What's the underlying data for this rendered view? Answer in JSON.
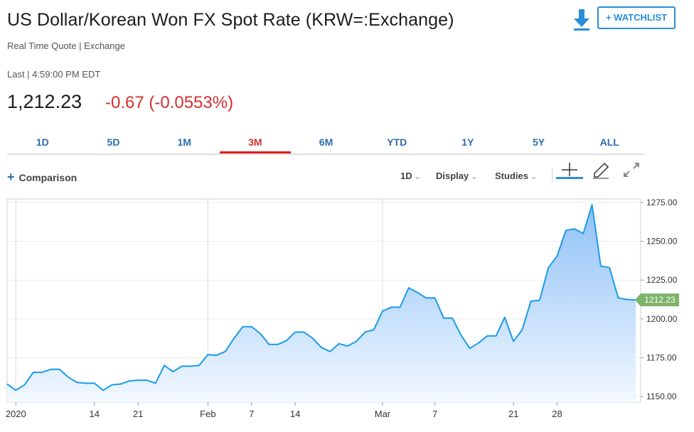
{
  "header": {
    "title": "US Dollar/Korean Won FX Spot Rate (KRW=:Exchange)",
    "subtitle": "Real Time Quote | Exchange",
    "last_time": "Last | 4:59:00 PM EDT",
    "price": "1,212.23",
    "change": "-0.67 (-0.0553%)",
    "watchlist_label": "+ WATCHLIST",
    "download_icon": "download-icon",
    "change_color": "#d32f2f"
  },
  "tabs": [
    {
      "label": "1D",
      "active": false
    },
    {
      "label": "5D",
      "active": false
    },
    {
      "label": "1M",
      "active": false
    },
    {
      "label": "3M",
      "active": true
    },
    {
      "label": "6M",
      "active": false
    },
    {
      "label": "YTD",
      "active": false
    },
    {
      "label": "1Y",
      "active": false
    },
    {
      "label": "5Y",
      "active": false
    },
    {
      "label": "ALL",
      "active": false
    }
  ],
  "toolbar": {
    "comparison_label": "Comparison",
    "interval_label": "1D",
    "display_label": "Display",
    "studies_label": "Studies",
    "crosshair_icon": "crosshair-icon",
    "draw_icon": "pencil-icon",
    "expand_icon": "expand-icon"
  },
  "chart_data": {
    "type": "area",
    "ylim": [
      1150,
      1275
    ],
    "y_ticks": [
      1150,
      1175,
      1200,
      1225,
      1250,
      1275
    ],
    "y_tick_labels": [
      "1150.00",
      "1175.00",
      "1200.00",
      "1225.00",
      "1250.00",
      "1275.00"
    ],
    "x_tick_labels": [
      "2020",
      "14",
      "21",
      "Feb",
      "7",
      "14",
      "Mar",
      "7",
      "21",
      "28"
    ],
    "last_value_label": "1212.23",
    "last_value": 1212.23,
    "line_color": "#1a9be8",
    "badge_color": "#7cb36a",
    "grid": true,
    "values": [
      1158,
      1154,
      1157.5,
      1165.5,
      1165.5,
      1167.5,
      1167.5,
      1162.5,
      1159,
      1158.5,
      1158.5,
      1154,
      1157.5,
      1158,
      1160,
      1160.5,
      1160.5,
      1158.5,
      1170,
      1166,
      1169.5,
      1169.5,
      1170,
      1177,
      1176.5,
      1179,
      1187.5,
      1195,
      1195,
      1190.5,
      1183.5,
      1183.5,
      1186,
      1191.5,
      1191.5,
      1187.5,
      1181.5,
      1179,
      1184,
      1182.5,
      1185.5,
      1191.5,
      1193,
      1205,
      1207.5,
      1207.5,
      1220,
      1217,
      1213.5,
      1213.5,
      1200.5,
      1200.5,
      1189.5,
      1181,
      1184.5,
      1189,
      1189,
      1201,
      1185.5,
      1193,
      1211.5,
      1212,
      1233,
      1240.5,
      1257,
      1258,
      1255,
      1273.5,
      1234,
      1233,
      1213.5,
      1212.5,
      1212.2
    ]
  }
}
